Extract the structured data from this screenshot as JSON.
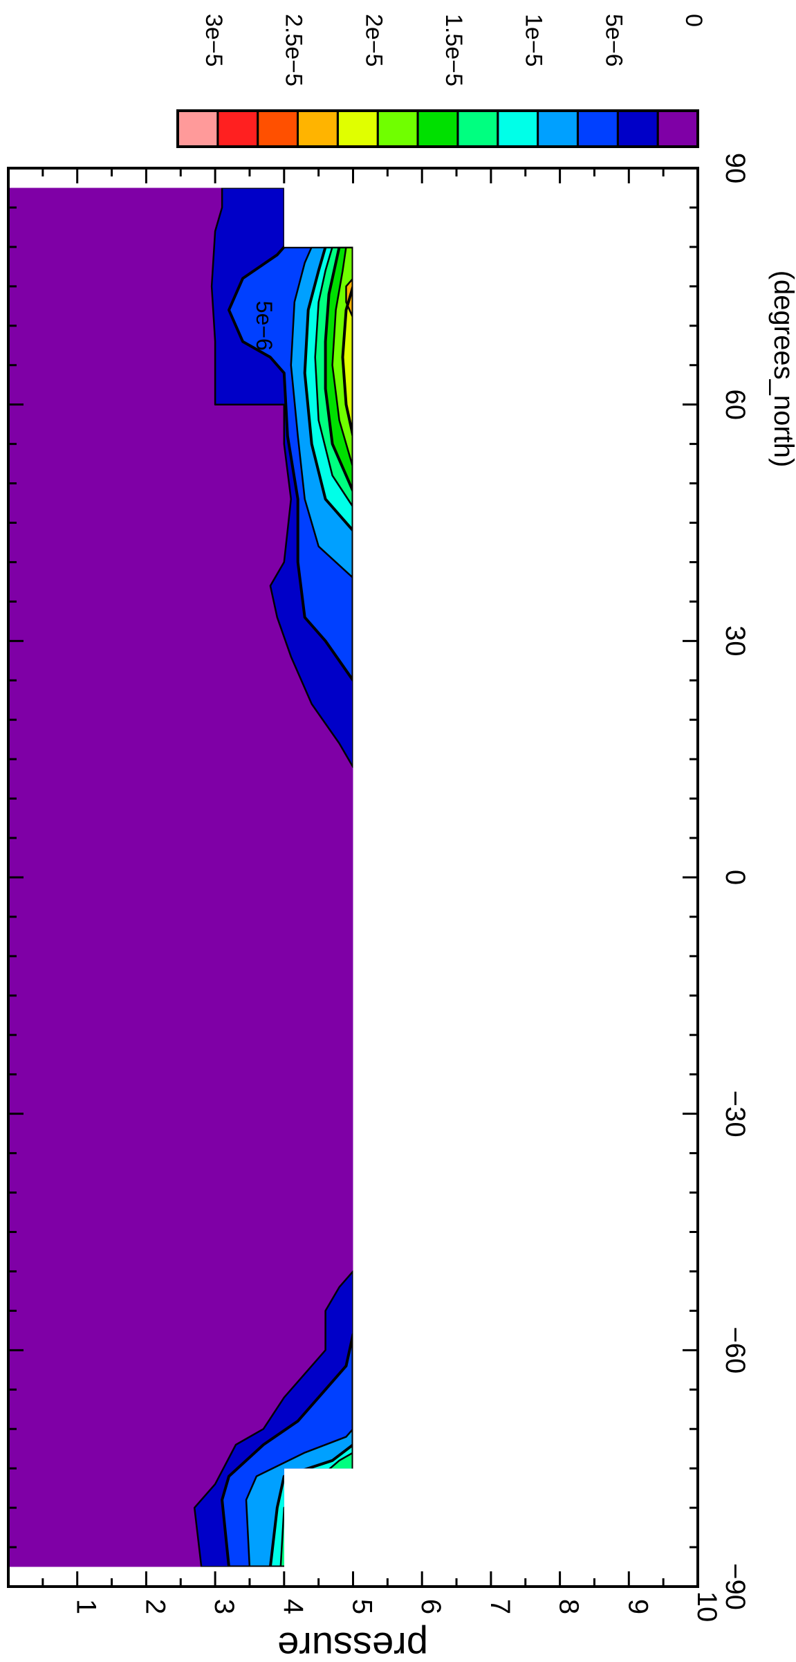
{
  "chart_data": {
    "type": "heatmap",
    "subtype": "filled-contour",
    "orientation": "rotated-90-clockwise",
    "title": "",
    "xlabel": "(degrees_north)",
    "ylabel": "pressure",
    "x_axis": {
      "range": [
        -90,
        90
      ],
      "ticks": [
        -90,
        -60,
        -30,
        0,
        30,
        60,
        90
      ],
      "tick_labels": [
        "−90",
        "−60",
        "−30",
        "0",
        "30",
        "60",
        "90"
      ],
      "minor_step": 5
    },
    "y_axis": {
      "range": [
        0,
        10
      ],
      "inverted": true,
      "ticks": [
        1,
        2,
        3,
        4,
        5,
        6,
        7,
        8,
        9,
        10
      ],
      "tick_labels": [
        "1",
        "2",
        "3",
        "4",
        "5",
        "6",
        "7",
        "8",
        "9",
        "10"
      ],
      "minor_step": 0.5
    },
    "data_region": {
      "x_range": [
        -87.5,
        87.5
      ],
      "y_range": [
        0,
        5
      ],
      "lower_strip": {
        "x_range": [
          -87.5,
          -75
        ],
        "y_range": [
          4,
          5
        ]
      },
      "missing_note_x_above_75": true
    },
    "colorbar": {
      "placement": "top",
      "levels": [
        0,
        2.5e-06,
        5e-06,
        7.5e-06,
        1e-05,
        1.25e-05,
        1.5e-05,
        1.75e-05,
        2e-05,
        2.25e-05,
        2.5e-05,
        2.75e-05,
        3e-05
      ],
      "label_values": [
        0,
        5e-06,
        1e-05,
        1.5e-05,
        2e-05,
        2.5e-05,
        3e-05
      ],
      "labels": [
        "0",
        "5e−6",
        "1e−5",
        "1.5e−5",
        "2e−5",
        "2.5e−5",
        "3e−5"
      ],
      "colors": [
        "#7f00a6",
        "#0000c8",
        "#0040ff",
        "#00a0ff",
        "#00ffe8",
        "#00ff80",
        "#00e000",
        "#70ff00",
        "#e0ff00",
        "#ffb400",
        "#ff5000",
        "#ff2020",
        "#ff9a9a"
      ]
    },
    "contour_bands": [
      {
        "level_index": 1,
        "outline": [
          [
            -87.5,
            2.8
          ],
          [
            -80,
            2.7
          ],
          [
            -77,
            3.0
          ],
          [
            -72,
            3.3
          ],
          [
            -70,
            3.7
          ],
          [
            -66,
            4.0
          ],
          [
            -64,
            4.2
          ],
          [
            -60,
            4.6
          ],
          [
            -55,
            4.6
          ],
          [
            -52,
            4.8
          ],
          [
            -50,
            5.0
          ],
          [
            -87.5,
            5.0
          ]
        ]
      },
      {
        "level_index": 2,
        "outline": [
          [
            -87.5,
            3.2
          ],
          [
            -79,
            3.1
          ],
          [
            -76,
            3.2
          ],
          [
            -72,
            3.7
          ],
          [
            -69,
            4.2
          ],
          [
            -65,
            4.6
          ],
          [
            -62,
            4.9
          ],
          [
            -58,
            5.0
          ],
          [
            -87.5,
            5.0
          ]
        ]
      },
      {
        "level_index": 3,
        "outline": [
          [
            -87.5,
            3.5
          ],
          [
            -79,
            3.45
          ],
          [
            -76,
            3.6
          ],
          [
            -73,
            4.3
          ],
          [
            -71,
            4.9
          ],
          [
            -70,
            5.0
          ],
          [
            -87.5,
            5.0
          ]
        ]
      },
      {
        "level_index": 4,
        "outline": [
          [
            -87.5,
            3.8
          ],
          [
            -80,
            3.9
          ],
          [
            -76,
            4.0
          ],
          [
            -74,
            4.7
          ],
          [
            -72,
            5.0
          ],
          [
            -87.5,
            5.0
          ]
        ]
      },
      {
        "level_index": 5,
        "outline": [
          [
            -87.5,
            3.95
          ],
          [
            -80,
            4.0
          ],
          [
            -74,
            4.8
          ],
          [
            -73,
            5.0
          ],
          [
            -87.5,
            5.0
          ]
        ]
      },
      {
        "level_index": 1,
        "outline": [
          [
            14,
            5.0
          ],
          [
            17,
            4.8
          ],
          [
            22,
            4.4
          ],
          [
            28,
            4.1
          ],
          [
            33,
            3.9
          ],
          [
            37,
            3.8
          ],
          [
            40,
            4.0
          ],
          [
            48,
            4.1
          ],
          [
            55,
            4.0
          ],
          [
            60,
            4.0
          ],
          [
            60,
            3.0
          ],
          [
            68,
            3.0
          ],
          [
            75,
            2.95
          ],
          [
            82,
            3.0
          ],
          [
            85,
            3.1
          ],
          [
            87.5,
            3.1
          ],
          [
            87.5,
            4.0
          ],
          [
            80,
            4.0
          ],
          [
            80,
            5.0
          ]
        ]
      },
      {
        "level_index": 2,
        "outline": [
          [
            25,
            5.0
          ],
          [
            30,
            4.6
          ],
          [
            33,
            4.3
          ],
          [
            40,
            4.2
          ],
          [
            48,
            4.2
          ],
          [
            56,
            4.05
          ],
          [
            64,
            4.0
          ],
          [
            66,
            3.8
          ],
          [
            68,
            3.4
          ],
          [
            72,
            3.2
          ],
          [
            76,
            3.4
          ],
          [
            79,
            3.9
          ],
          [
            80,
            4.0
          ],
          [
            80,
            5.0
          ]
        ]
      },
      {
        "level_index": 3,
        "outline": [
          [
            38,
            5.0
          ],
          [
            42,
            4.5
          ],
          [
            48,
            4.3
          ],
          [
            56,
            4.2
          ],
          [
            65,
            4.1
          ],
          [
            73,
            4.15
          ],
          [
            78,
            4.3
          ],
          [
            80,
            4.4
          ],
          [
            80,
            5.0
          ]
        ]
      },
      {
        "level_index": 4,
        "outline": [
          [
            44,
            5.0
          ],
          [
            48,
            4.6
          ],
          [
            55,
            4.4
          ],
          [
            64,
            4.3
          ],
          [
            72,
            4.35
          ],
          [
            77,
            4.5
          ],
          [
            80,
            4.6
          ],
          [
            80,
            5.0
          ]
        ]
      },
      {
        "level_index": 5,
        "outline": [
          [
            47,
            5.0
          ],
          [
            51,
            4.7
          ],
          [
            58,
            4.5
          ],
          [
            66,
            4.45
          ],
          [
            73,
            4.5
          ],
          [
            77,
            4.6
          ],
          [
            80,
            4.7
          ],
          [
            80,
            5.0
          ]
        ]
      },
      {
        "level_index": 6,
        "outline": [
          [
            49,
            5.0
          ],
          [
            55,
            4.7
          ],
          [
            62,
            4.6
          ],
          [
            68,
            4.6
          ],
          [
            74,
            4.65
          ],
          [
            78,
            4.75
          ],
          [
            80,
            4.8
          ],
          [
            80,
            5.0
          ]
        ]
      },
      {
        "level_index": 7,
        "outline": [
          [
            52,
            5.0
          ],
          [
            58,
            4.8
          ],
          [
            65,
            4.7
          ],
          [
            72,
            4.75
          ],
          [
            77,
            4.85
          ],
          [
            80,
            4.9
          ],
          [
            80,
            5.0
          ]
        ]
      },
      {
        "level_index": 8,
        "outline": [
          [
            56,
            5.0
          ],
          [
            60,
            4.9
          ],
          [
            66,
            4.85
          ],
          [
            72,
            4.9
          ],
          [
            75,
            5.0
          ]
        ]
      },
      {
        "level_index": 9,
        "outline": [
          [
            71,
            5.0
          ],
          [
            73,
            4.9
          ],
          [
            75,
            4.9
          ],
          [
            76,
            5.0
          ]
        ]
      }
    ],
    "annotations": [
      {
        "text": "5e−6",
        "x": 70,
        "y": 3.6
      }
    ]
  }
}
